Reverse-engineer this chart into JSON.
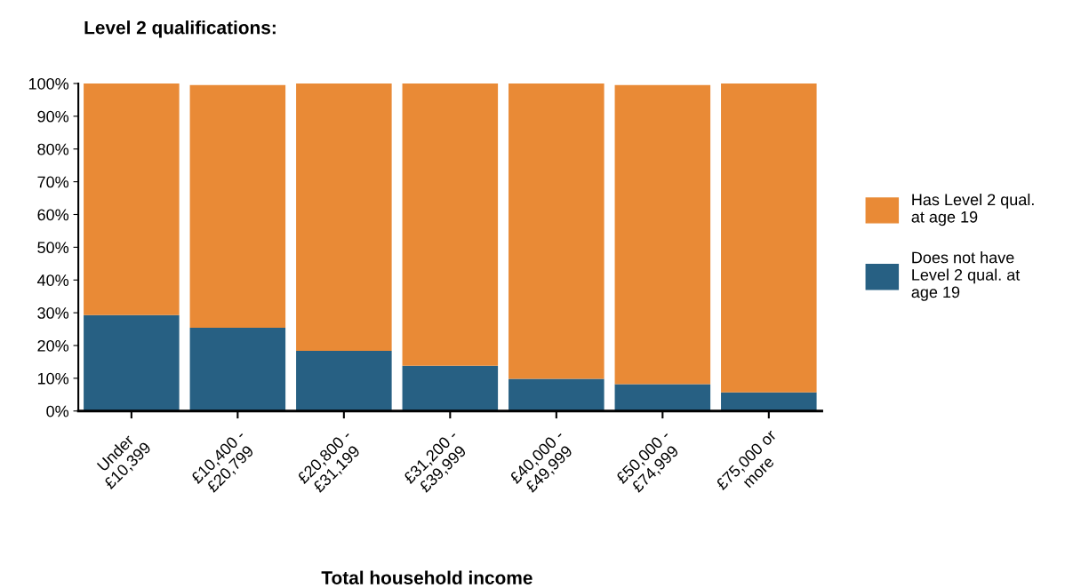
{
  "chart_data": {
    "type": "bar",
    "stacked": true,
    "title": "Level 2 qualifications:",
    "xlabel": "Total household income",
    "categories": [
      "Under\n£10,399",
      "£10,400 -\n£20,799",
      "£20,800 -\n£31,199",
      "£31,200 -\n£39,999",
      "£40,000 -\n£49,999",
      "£50,000 -\n£74,999",
      "£75,000 or\nmore"
    ],
    "series": [
      {
        "name": "Does not have\nLevel 2 qual. at\nage 19",
        "color": "#276083",
        "values": [
          29.3,
          25.4,
          18.4,
          13.8,
          9.8,
          8.2,
          5.7
        ]
      },
      {
        "name": "Has Level 2 qual.\nat age 19",
        "color": "#e98a36",
        "values": [
          70.7,
          74.1,
          81.6,
          86.2,
          90.2,
          91.3,
          94.3
        ]
      }
    ],
    "ylim": [
      0,
      100
    ],
    "yticks": [
      {
        "value": 0,
        "label": "0%"
      },
      {
        "value": 10,
        "label": "10%"
      },
      {
        "value": 20,
        "label": "20%"
      },
      {
        "value": 30,
        "label": "30%"
      },
      {
        "value": 40,
        "label": "40%"
      },
      {
        "value": 50,
        "label": "50%"
      },
      {
        "value": 60,
        "label": "60%"
      },
      {
        "value": 70,
        "label": "70%"
      },
      {
        "value": 80,
        "label": "80%"
      },
      {
        "value": 90,
        "label": "90%"
      },
      {
        "value": 100,
        "label": "100%"
      }
    ],
    "grid": false,
    "legend": "right"
  }
}
